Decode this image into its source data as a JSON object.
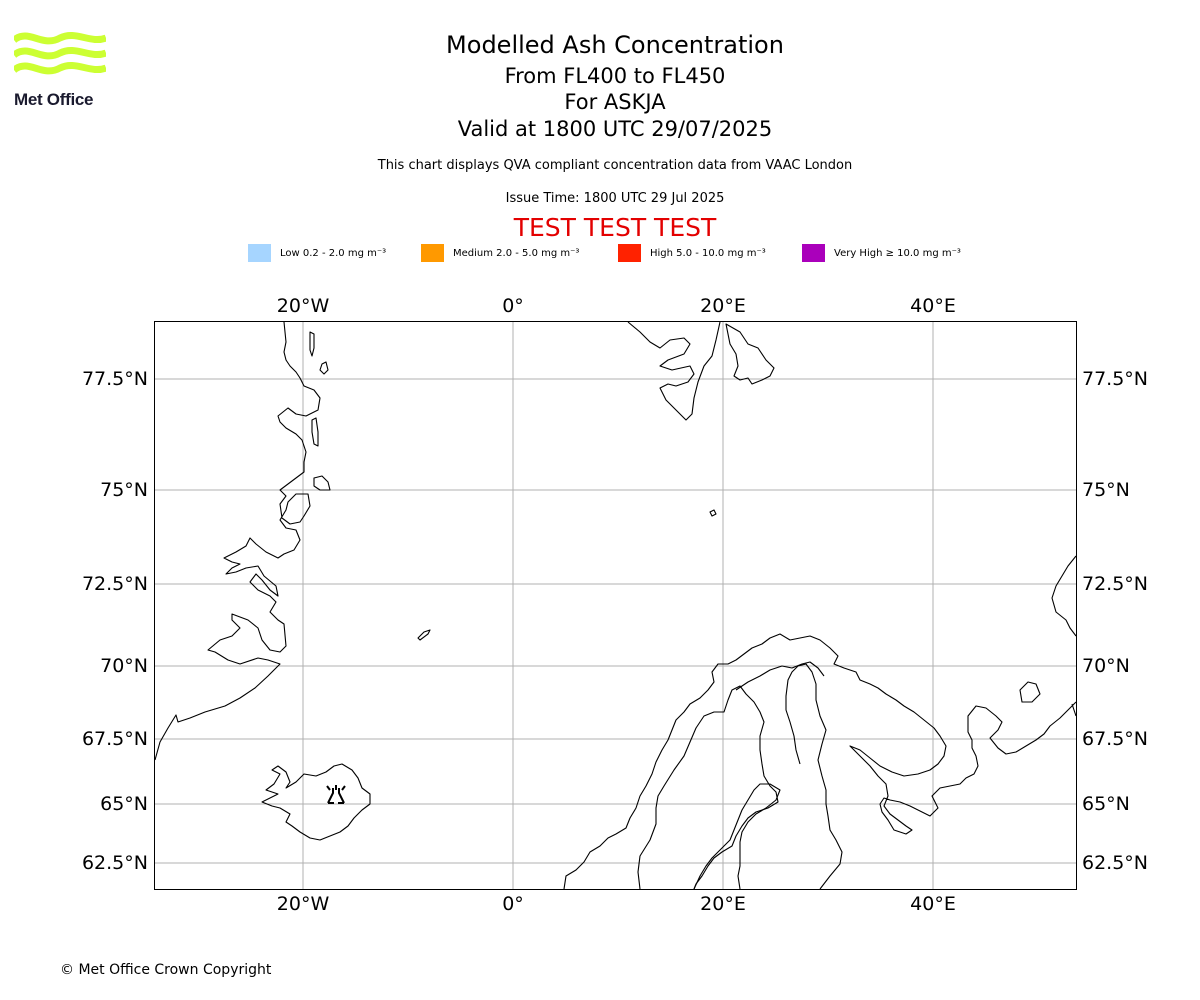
{
  "logo": {
    "text": "Met Office",
    "color": "#ccff33"
  },
  "titles": {
    "main": "Modelled Ash Concentration",
    "levels": "From FL400 to FL450",
    "volcano": "For ASKJA",
    "valid": "Valid at 1800 UTC 29/07/2025",
    "note": "This chart displays QVA compliant concentration data from VAAC London",
    "issue": "Issue Time: 1800 UTC 29 Jul 2025",
    "test": "TEST TEST TEST"
  },
  "legend": [
    {
      "label": "Low 0.2 - 2.0 mg m⁻³",
      "color": "#a6d5ff"
    },
    {
      "label": "Medium 2.0 - 5.0 mg m⁻³",
      "color": "#ff9900"
    },
    {
      "label": "High 5.0 - 10.0 mg m⁻³",
      "color": "#ff2200"
    },
    {
      "label": "Very High  ≥  10.0 mg m⁻³",
      "color": "#aa00bb"
    }
  ],
  "map": {
    "lon_labels": [
      "20°W",
      "0°",
      "20°E",
      "40°E"
    ],
    "lat_labels": [
      "77.5°N",
      "75°N",
      "72.5°N",
      "70°N",
      "67.5°N",
      "65°N",
      "62.5°N"
    ],
    "gridline_color": "#b0b0b0",
    "volcano_marker": "volcano-icon"
  },
  "copyright": "© Met Office Crown Copyright"
}
